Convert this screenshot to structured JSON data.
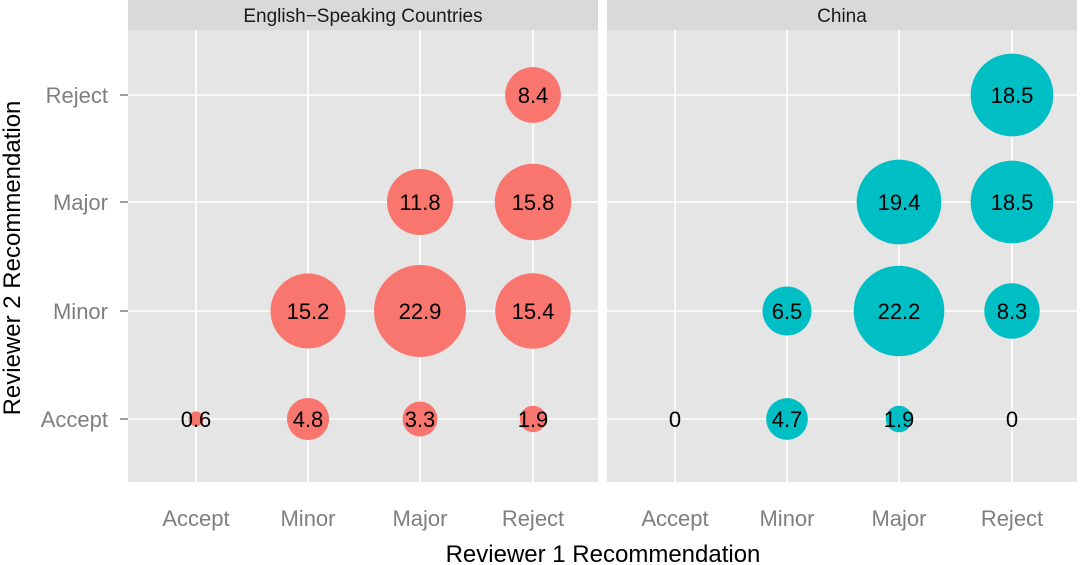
{
  "chart_data": {
    "type": "bubble",
    "xlabel": "Reviewer 1 Recommendation",
    "ylabel": "Reviewer 2 Recommendation",
    "x_categories": [
      "Accept",
      "Minor",
      "Major",
      "Reject"
    ],
    "y_categories": [
      "Accept",
      "Minor",
      "Major",
      "Reject"
    ],
    "grid": true,
    "legend": "none",
    "panels": [
      {
        "title": "English−Speaking Countries",
        "color": "#F8766D",
        "points": [
          {
            "x": "Accept",
            "y": "Accept",
            "value": 0.6,
            "label": "0.6"
          },
          {
            "x": "Minor",
            "y": "Accept",
            "value": 4.8,
            "label": "4.8"
          },
          {
            "x": "Major",
            "y": "Accept",
            "value": 3.3,
            "label": "3.3"
          },
          {
            "x": "Reject",
            "y": "Accept",
            "value": 1.9,
            "label": "1.9"
          },
          {
            "x": "Minor",
            "y": "Minor",
            "value": 15.2,
            "label": "15.2"
          },
          {
            "x": "Major",
            "y": "Minor",
            "value": 22.9,
            "label": "22.9"
          },
          {
            "x": "Reject",
            "y": "Minor",
            "value": 15.4,
            "label": "15.4"
          },
          {
            "x": "Major",
            "y": "Major",
            "value": 11.8,
            "label": "11.8"
          },
          {
            "x": "Reject",
            "y": "Major",
            "value": 15.8,
            "label": "15.8"
          },
          {
            "x": "Reject",
            "y": "Reject",
            "value": 8.4,
            "label": "8.4"
          }
        ]
      },
      {
        "title": "China",
        "color": "#00BFC4",
        "points": [
          {
            "x": "Accept",
            "y": "Accept",
            "value": 0,
            "label": "0"
          },
          {
            "x": "Minor",
            "y": "Accept",
            "value": 4.7,
            "label": "4.7"
          },
          {
            "x": "Major",
            "y": "Accept",
            "value": 1.9,
            "label": "1.9"
          },
          {
            "x": "Reject",
            "y": "Accept",
            "value": 0,
            "label": "0"
          },
          {
            "x": "Minor",
            "y": "Minor",
            "value": 6.5,
            "label": "6.5"
          },
          {
            "x": "Major",
            "y": "Minor",
            "value": 22.2,
            "label": "22.2"
          },
          {
            "x": "Reject",
            "y": "Minor",
            "value": 8.3,
            "label": "8.3"
          },
          {
            "x": "Major",
            "y": "Major",
            "value": 19.4,
            "label": "19.4"
          },
          {
            "x": "Reject",
            "y": "Major",
            "value": 18.5,
            "label": "18.5"
          },
          {
            "x": "Reject",
            "y": "Reject",
            "value": 18.5,
            "label": "18.5"
          }
        ]
      }
    ]
  }
}
